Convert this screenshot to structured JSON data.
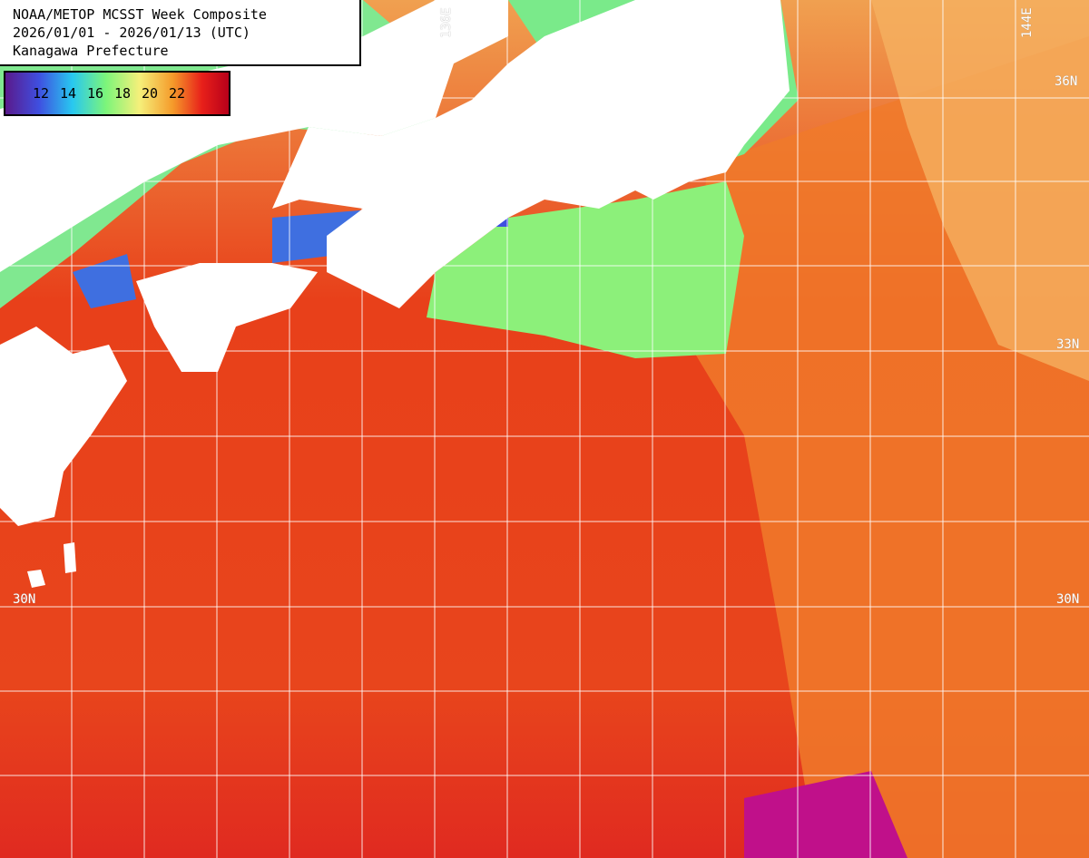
{
  "title": {
    "line1": "NOAA/METOP MCSST Week Composite",
    "line2": "2026/01/01 - 2026/01/13 (UTC)",
    "line3": "Kanagawa Prefecture"
  },
  "legend": {
    "unit_ticks": [
      "12",
      "14",
      "16",
      "18",
      "20",
      "22"
    ],
    "colors": [
      "#5a1a8c",
      "#3f4fe0",
      "#28c8f0",
      "#7cf57a",
      "#f5f07a",
      "#f59a2a",
      "#e8201a",
      "#b8001a"
    ]
  },
  "grid": {
    "lat_labels": {
      "north": "36N",
      "mid": "33N",
      "south": "30N"
    },
    "lon_labels": {
      "west": "136E",
      "east": "144E"
    }
  },
  "colors": {
    "land": "#ffffff",
    "warm_sea": "#e8401a",
    "orange_sea": "#f57a2a",
    "cool_sea": "#8cf07a",
    "cold_sea": "#3f6fe0",
    "gridline": "#ffffff"
  }
}
